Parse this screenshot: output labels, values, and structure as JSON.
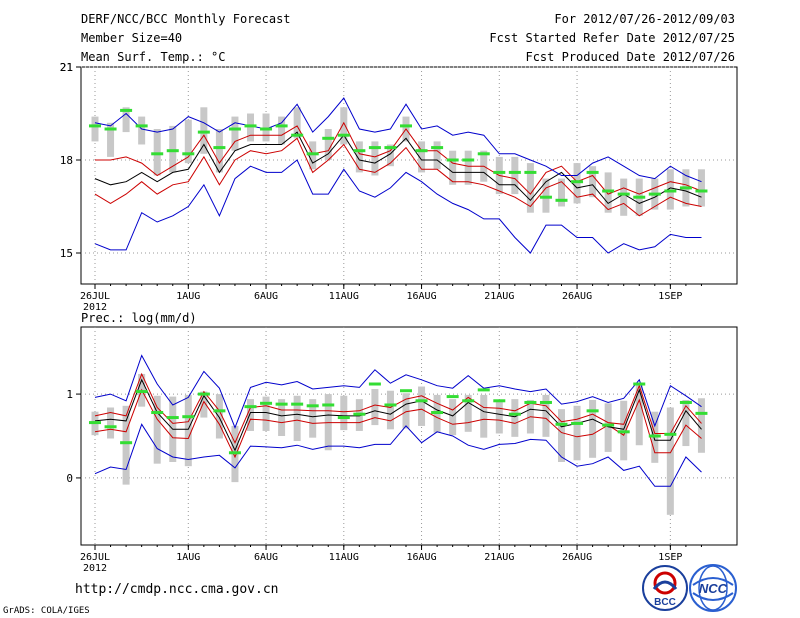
{
  "header": {
    "title": "DERF/NCC/BCC Monthly Forecast",
    "member_size": "Member Size=40",
    "variable": "Mean Surf. Temp.: °C",
    "forecast_period": "For 2012/07/26-2012/09/03",
    "started_refer": "Fcst Started Refer Date 2012/07/25",
    "produced": "Fcst Produced Date 2012/07/26"
  },
  "footer": {
    "url": "http://cmdp.ncc.cma.gov.cn",
    "grads_credit": "GrADS: COLA/IGES",
    "logo_left": "BCC",
    "logo_right": "NCC"
  },
  "colors": {
    "ensemble_mean": "#000000",
    "spread": "#cc0000",
    "extremes": "#0000cc",
    "box": "#c8c8c8",
    "observed": "#33dd33"
  },
  "chart_data": [
    {
      "type": "line",
      "title": "Mean Surf. Temp.: °C",
      "x_day_index": [
        0,
        1,
        2,
        3,
        4,
        5,
        6,
        7,
        8,
        9,
        10,
        11,
        12,
        13,
        14,
        15,
        16,
        17,
        18,
        19,
        20,
        21,
        22,
        23,
        24,
        25,
        26,
        27,
        28,
        29,
        30,
        31,
        32,
        33,
        34,
        35,
        36,
        37,
        38,
        39
      ],
      "x_tick_labels": [
        "26JUL",
        "1AUG",
        "6AUG",
        "11AUG",
        "16AUG",
        "21AUG",
        "26AUG",
        "1SEP"
      ],
      "x_tick_positions": [
        0,
        6,
        11,
        16,
        21,
        26,
        31,
        37
      ],
      "x_sublabel": "2012",
      "ylim": [
        14,
        21
      ],
      "yticks": [
        15,
        18,
        21
      ],
      "series": [
        {
          "name": "max",
          "values": [
            15.3,
            15.1,
            15.1,
            16.3,
            16.0,
            16.2,
            16.5,
            17.2,
            16.2,
            17.4,
            17.8,
            17.6,
            17.6,
            18.0,
            16.9,
            16.9,
            17.7,
            17.0,
            16.8,
            17.1,
            17.6,
            17.3,
            16.9,
            16.6,
            16.4,
            16.1,
            16.1,
            15.5,
            15.0,
            15.9,
            15.9,
            15.5,
            15.5,
            15.0,
            15.3,
            15.1,
            15.2,
            15.6,
            15.5,
            15.5
          ]
        },
        {
          "name": "p_low",
          "values": [
            16.9,
            16.6,
            16.9,
            17.3,
            16.9,
            17.2,
            17.3,
            18.1,
            17.2,
            18.0,
            18.3,
            18.2,
            18.3,
            18.7,
            17.6,
            18.0,
            18.5,
            17.7,
            17.6,
            17.9,
            18.4,
            17.7,
            17.7,
            17.3,
            17.3,
            17.2,
            17.0,
            16.8,
            16.5,
            17.1,
            17.3,
            16.8,
            16.9,
            16.4,
            16.6,
            16.2,
            16.5,
            16.8,
            16.6,
            16.5
          ]
        },
        {
          "name": "mean",
          "values": [
            17.4,
            17.2,
            17.3,
            17.6,
            17.3,
            17.6,
            17.7,
            18.5,
            17.6,
            18.3,
            18.5,
            18.5,
            18.5,
            18.9,
            17.9,
            18.2,
            18.8,
            18.0,
            17.9,
            18.2,
            18.7,
            18.0,
            18.0,
            17.6,
            17.6,
            17.6,
            17.2,
            17.2,
            16.7,
            17.3,
            17.6,
            17.1,
            17.2,
            16.6,
            16.9,
            16.6,
            16.8,
            17.1,
            17.0,
            16.8
          ]
        },
        {
          "name": "p_high",
          "values": [
            18.0,
            18.0,
            18.1,
            17.9,
            17.5,
            17.8,
            18.1,
            18.8,
            17.9,
            18.6,
            18.8,
            18.8,
            18.8,
            19.1,
            18.2,
            18.3,
            19.2,
            18.2,
            18.1,
            18.3,
            19.0,
            18.3,
            18.3,
            17.9,
            17.8,
            17.8,
            17.5,
            17.4,
            16.9,
            17.6,
            17.8,
            17.3,
            17.5,
            16.9,
            17.1,
            16.9,
            17.1,
            17.3,
            17.2,
            17.0
          ]
        },
        {
          "name": "min",
          "values": [
            19.2,
            19.1,
            19.5,
            19.0,
            18.9,
            19.0,
            19.4,
            19.2,
            18.9,
            19.2,
            19.1,
            19.0,
            19.2,
            19.8,
            18.9,
            19.4,
            20.0,
            19.0,
            18.9,
            19.0,
            19.8,
            19.0,
            19.1,
            18.8,
            18.9,
            18.8,
            18.2,
            18.2,
            18.0,
            17.8,
            17.5,
            17.5,
            17.9,
            18.1,
            17.8,
            17.5,
            17.4,
            17.8,
            17.5,
            17.3
          ]
        },
        {
          "name": "observed",
          "values": [
            19.1,
            19.0,
            19.6,
            19.1,
            18.2,
            18.3,
            18.2,
            18.9,
            18.4,
            19.0,
            19.1,
            19.0,
            19.1,
            18.8,
            18.2,
            18.7,
            18.8,
            18.3,
            18.4,
            18.4,
            19.1,
            18.3,
            18.4,
            18.0,
            18.0,
            18.2,
            17.6,
            17.6,
            17.6,
            16.8,
            16.7,
            17.3,
            17.6,
            17.0,
            16.9,
            16.8,
            16.9,
            17.0,
            17.1,
            17.0
          ]
        }
      ],
      "box_low": [
        18.6,
        18.1,
        18.9,
        18.5,
        17.5,
        17.6,
        17.9,
        18.2,
        17.6,
        18.3,
        18.6,
        18.6,
        18.5,
        18.7,
        17.7,
        18.0,
        18.5,
        17.6,
        17.5,
        17.8,
        18.6,
        17.6,
        17.7,
        17.2,
        17.2,
        17.3,
        16.9,
        16.9,
        16.3,
        16.3,
        16.5,
        16.6,
        16.8,
        16.3,
        16.2,
        16.2,
        16.4,
        16.4,
        16.5,
        16.5
      ],
      "box_high": [
        19.4,
        19.2,
        19.7,
        19.4,
        19.0,
        19.1,
        19.3,
        19.7,
        19.0,
        19.4,
        19.5,
        19.5,
        19.4,
        19.7,
        18.6,
        19.0,
        19.7,
        18.6,
        18.6,
        18.5,
        19.4,
        18.6,
        18.6,
        18.3,
        18.3,
        18.3,
        18.1,
        18.1,
        17.9,
        17.4,
        17.4,
        17.9,
        17.8,
        17.6,
        17.4,
        17.4,
        17.4,
        17.7,
        17.7,
        17.7
      ]
    },
    {
      "type": "line",
      "title": "Prec.: log(mm/d)",
      "x_day_index": [
        0,
        1,
        2,
        3,
        4,
        5,
        6,
        7,
        8,
        9,
        10,
        11,
        12,
        13,
        14,
        15,
        16,
        17,
        18,
        19,
        20,
        21,
        22,
        23,
        24,
        25,
        26,
        27,
        28,
        29,
        30,
        31,
        32,
        33,
        34,
        35,
        36,
        37,
        38,
        39
      ],
      "x_tick_labels": [
        "26JUL",
        "1AUG",
        "6AUG",
        "11AUG",
        "16AUG",
        "21AUG",
        "26AUG",
        "1SEP"
      ],
      "x_tick_positions": [
        0,
        6,
        11,
        16,
        21,
        26,
        31,
        37
      ],
      "x_sublabel": "2012",
      "ylim": [
        -0.8,
        1.8
      ],
      "yticks": [
        0,
        1
      ],
      "series": [
        {
          "name": "min",
          "values": [
            0.05,
            0.13,
            0.1,
            0.64,
            0.35,
            0.25,
            0.22,
            0.25,
            0.27,
            0.12,
            0.38,
            0.37,
            0.36,
            0.39,
            0.34,
            0.38,
            0.38,
            0.36,
            0.4,
            0.4,
            0.62,
            0.42,
            0.55,
            0.5,
            0.39,
            0.34,
            0.4,
            0.41,
            0.46,
            0.45,
            0.25,
            0.14,
            0.17,
            0.25,
            0.09,
            0.14,
            -0.1,
            -0.1,
            0.25,
            0.07
          ]
        },
        {
          "name": "p_low",
          "values": [
            0.55,
            0.58,
            0.55,
            1.05,
            0.7,
            0.48,
            0.47,
            0.91,
            0.64,
            0.25,
            0.7,
            0.69,
            0.66,
            0.69,
            0.65,
            0.66,
            0.66,
            0.66,
            0.72,
            0.68,
            0.79,
            0.82,
            0.72,
            0.64,
            0.66,
            0.7,
            0.69,
            0.65,
            0.73,
            0.71,
            0.54,
            0.49,
            0.52,
            0.63,
            0.51,
            0.93,
            0.3,
            0.3,
            0.63,
            0.47
          ]
        },
        {
          "name": "mean",
          "values": [
            0.68,
            0.7,
            0.68,
            1.17,
            0.78,
            0.58,
            0.58,
            0.98,
            0.72,
            0.33,
            0.78,
            0.78,
            0.74,
            0.76,
            0.73,
            0.75,
            0.74,
            0.74,
            0.8,
            0.76,
            0.88,
            0.92,
            0.81,
            0.74,
            0.9,
            0.79,
            0.76,
            0.73,
            0.82,
            0.8,
            0.61,
            0.65,
            0.7,
            0.61,
            0.58,
            1.05,
            0.45,
            0.45,
            0.8,
            0.58
          ]
        },
        {
          "name": "p_high",
          "values": [
            0.74,
            0.78,
            0.74,
            1.24,
            0.84,
            0.65,
            0.67,
            1.03,
            0.8,
            0.42,
            0.84,
            0.86,
            0.81,
            0.81,
            0.8,
            0.8,
            0.79,
            0.8,
            0.87,
            0.84,
            0.94,
            0.98,
            0.89,
            0.81,
            0.96,
            0.84,
            0.83,
            0.8,
            0.89,
            0.86,
            0.67,
            0.7,
            0.76,
            0.66,
            0.64,
            1.1,
            0.53,
            0.53,
            0.86,
            0.65
          ]
        },
        {
          "name": "max",
          "values": [
            0.96,
            1.0,
            0.92,
            1.46,
            1.12,
            0.87,
            0.96,
            1.27,
            1.07,
            0.6,
            1.08,
            1.14,
            1.11,
            1.15,
            1.06,
            1.08,
            1.1,
            1.08,
            1.29,
            1.13,
            1.23,
            1.17,
            1.1,
            1.07,
            1.22,
            1.07,
            1.1,
            1.06,
            1.03,
            1.06,
            0.88,
            0.91,
            0.97,
            0.9,
            0.95,
            1.17,
            0.62,
            1.1,
            0.98,
            0.85
          ]
        },
        {
          "name": "observed",
          "values": [
            0.66,
            0.61,
            0.42,
            1.03,
            0.78,
            0.72,
            0.73,
            1.0,
            0.8,
            0.3,
            0.85,
            0.89,
            0.88,
            0.88,
            0.86,
            0.87,
            0.72,
            0.76,
            1.12,
            0.87,
            1.04,
            0.92,
            0.78,
            0.97,
            0.92,
            1.05,
            0.92,
            0.76,
            0.9,
            0.9,
            0.64,
            0.65,
            0.8,
            0.63,
            0.55,
            1.12,
            0.5,
            0.52,
            0.9,
            0.77
          ]
        }
      ],
      "box_low": [
        0.51,
        0.47,
        -0.08,
        0.85,
        0.17,
        0.19,
        0.14,
        0.72,
        0.47,
        -0.05,
        0.56,
        0.56,
        0.5,
        0.44,
        0.48,
        0.33,
        0.57,
        0.56,
        0.63,
        0.58,
        0.59,
        0.62,
        0.54,
        0.51,
        0.55,
        0.48,
        0.53,
        0.49,
        0.53,
        0.49,
        0.19,
        0.21,
        0.24,
        0.31,
        0.21,
        0.39,
        0.18,
        -0.44,
        0.38,
        0.3
      ],
      "box_high": [
        0.79,
        0.84,
        0.86,
        1.24,
        0.98,
        0.97,
        0.99,
        1.03,
        1.0,
        0.62,
        0.94,
        0.97,
        0.94,
        0.98,
        0.94,
        1.0,
        0.98,
        0.94,
        1.06,
        1.04,
        1.01,
        1.09,
        0.99,
        0.94,
        0.99,
        0.99,
        0.93,
        0.94,
        0.93,
        0.99,
        0.82,
        0.86,
        0.93,
        0.89,
        0.92,
        1.12,
        0.79,
        0.84,
        0.93,
        0.95
      ]
    }
  ]
}
